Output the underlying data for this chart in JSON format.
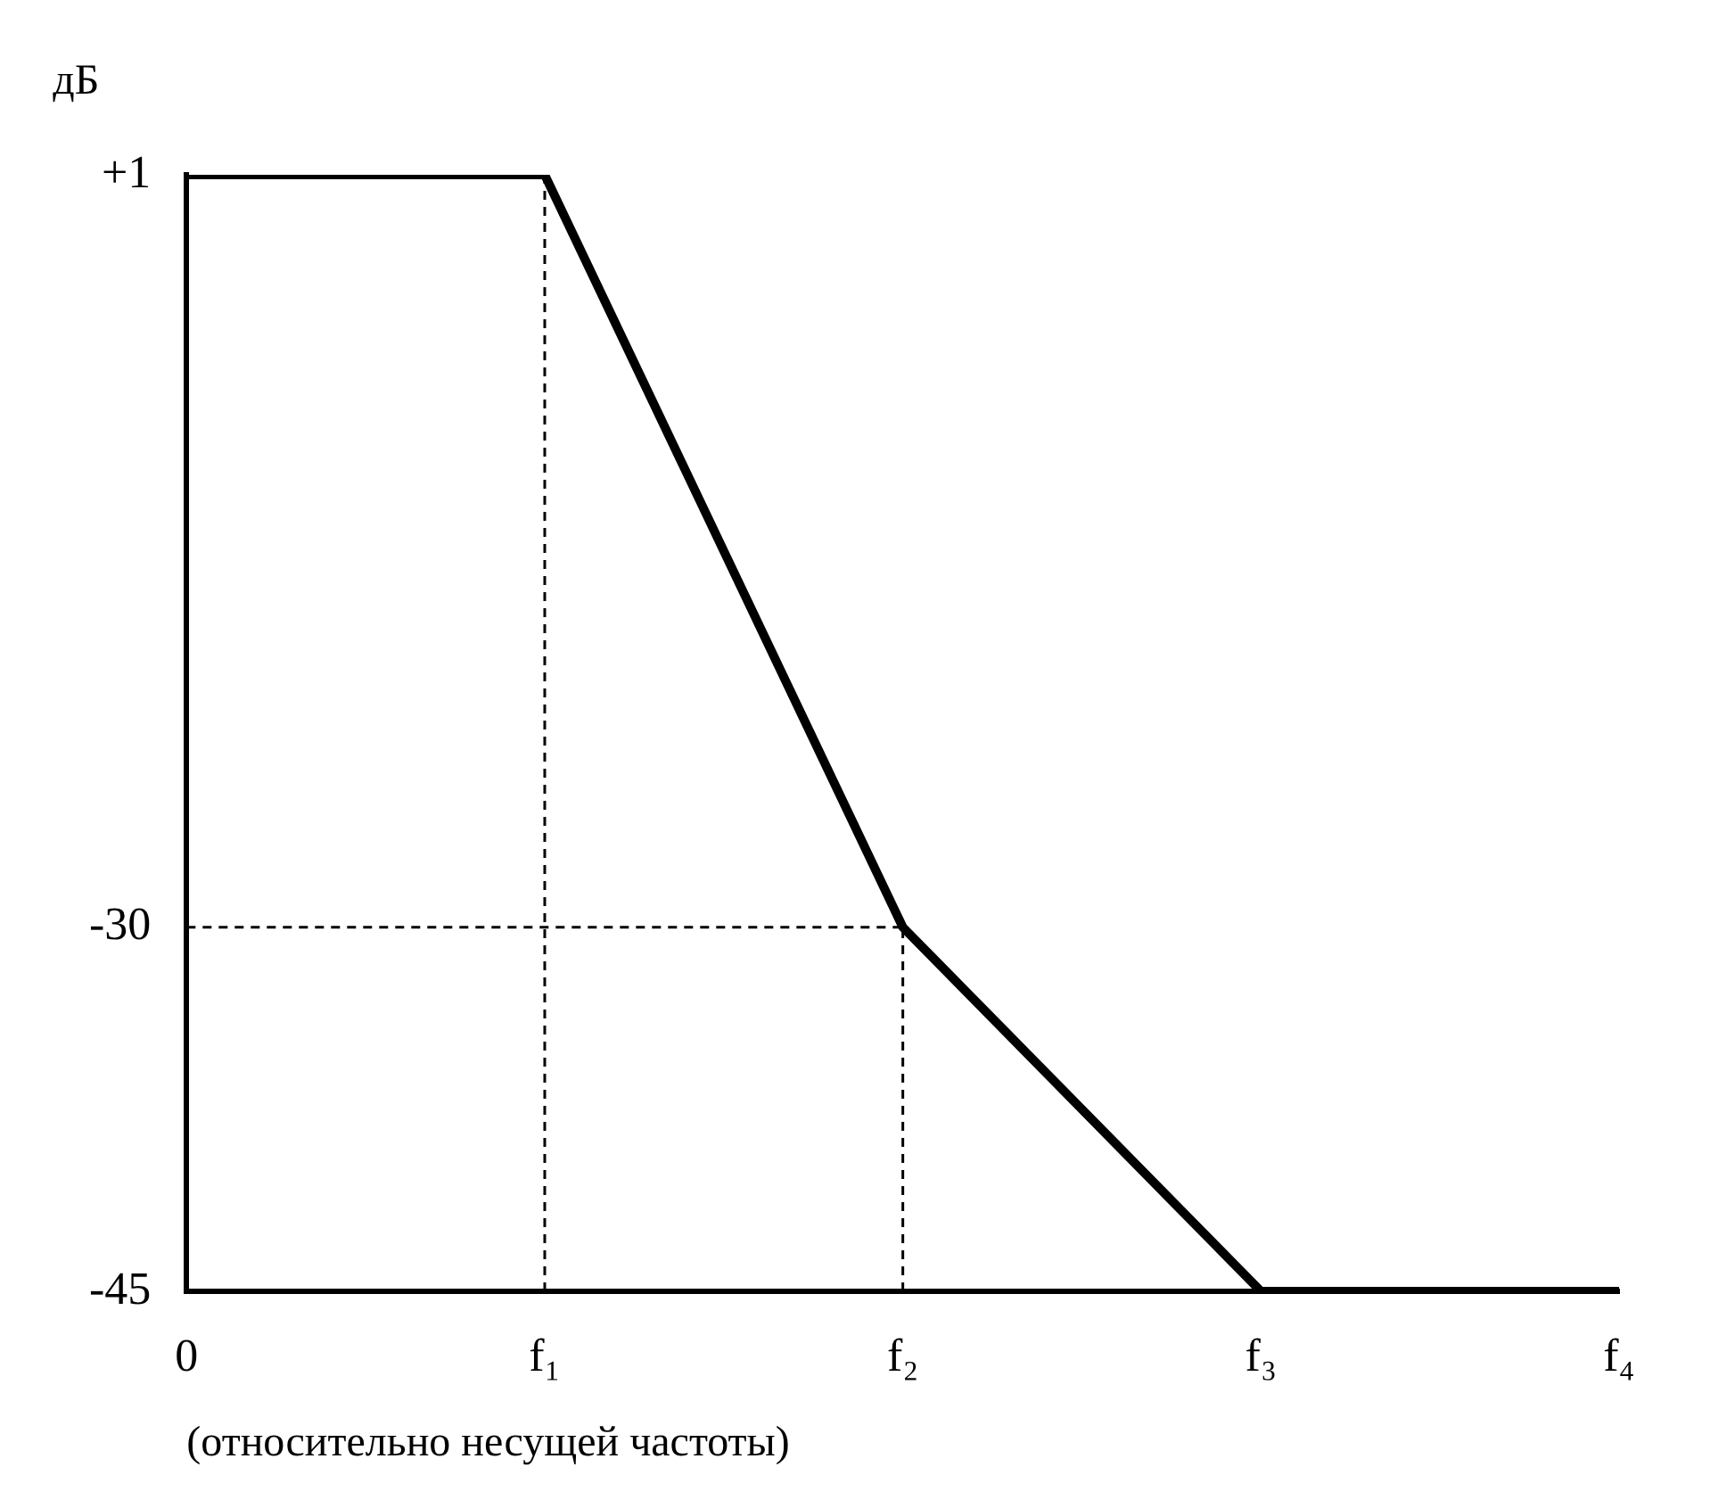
{
  "chart_data": {
    "type": "line",
    "ylabel": "дБ",
    "xlabel": "(относительно несущей частоты)",
    "categories": [
      "0",
      "f₁",
      "f₂",
      "f₃",
      "f₄"
    ],
    "values": [
      1,
      1,
      -30,
      -45,
      -45
    ],
    "color": "#000000",
    "marker": "none",
    "line_style": "solid",
    "ylim": [
      -45,
      1
    ],
    "yticks": [
      {
        "value": 1,
        "label": "+1"
      },
      -30,
      -45
    ],
    "grid": false,
    "legend": false,
    "ref_lines": [
      {
        "axis": "x",
        "value": "f₁",
        "color": "#000000",
        "line_style": "dashed"
      },
      {
        "axis": "x",
        "value": "f₂",
        "color": "#000000",
        "line_style": "dashed"
      },
      {
        "axis": "y",
        "value": -30,
        "color": "#000000",
        "line_style": "dashed"
      }
    ]
  }
}
